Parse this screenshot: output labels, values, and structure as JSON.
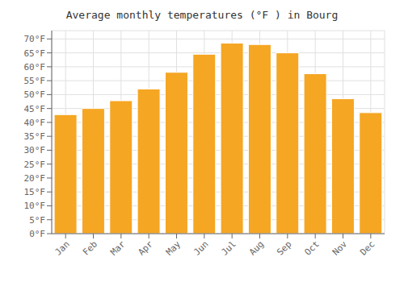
{
  "chart_data": {
    "type": "bar",
    "title": "Average monthly temperatures (°F ) in Bourg",
    "categories": [
      "Jan",
      "Feb",
      "Mar",
      "Apr",
      "May",
      "Jun",
      "Jul",
      "Aug",
      "Sep",
      "Oct",
      "Nov",
      "Dec"
    ],
    "values": [
      42.8,
      45.0,
      47.8,
      52.0,
      58.0,
      64.5,
      68.5,
      68.0,
      65.0,
      57.5,
      48.5,
      43.5
    ],
    "color": "#F5A623",
    "ylim": [
      0,
      73
    ],
    "yticks": [
      {
        "value": 0,
        "label": "0°F"
      },
      {
        "value": 5,
        "label": "5°F"
      },
      {
        "value": 10,
        "label": "10°F"
      },
      {
        "value": 15,
        "label": "15°F"
      },
      {
        "value": 20,
        "label": "20°F"
      },
      {
        "value": 25,
        "label": "25°F"
      },
      {
        "value": 30,
        "label": "30°F"
      },
      {
        "value": 35,
        "label": "35°F"
      },
      {
        "value": 40,
        "label": "40°F"
      },
      {
        "value": 45,
        "label": "45°F"
      },
      {
        "value": 50,
        "label": "50°F"
      },
      {
        "value": 55,
        "label": "55°F"
      },
      {
        "value": 60,
        "label": "60°F"
      },
      {
        "value": 65,
        "label": "65°F"
      },
      {
        "value": 70,
        "label": "70°F"
      }
    ],
    "grid": true
  }
}
